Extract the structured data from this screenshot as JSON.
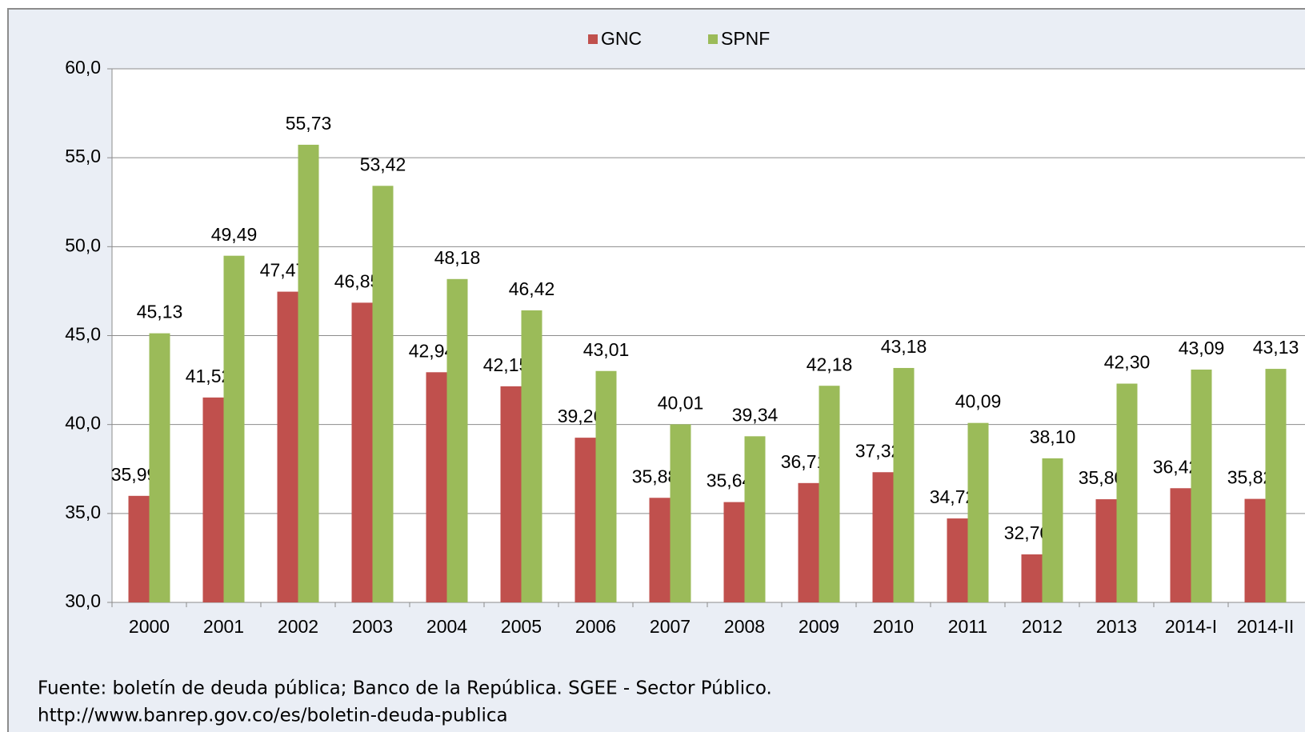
{
  "chart_data": {
    "type": "bar",
    "categories": [
      "2000",
      "2001",
      "2002",
      "2003",
      "2004",
      "2005",
      "2006",
      "2007",
      "2008",
      "2009",
      "2010",
      "2011",
      "2012",
      "2013",
      "2014-I",
      "2014-II"
    ],
    "series": [
      {
        "name": "GNC",
        "color": "#c0504d",
        "values": [
          35.99,
          41.52,
          47.47,
          46.85,
          42.94,
          42.15,
          39.26,
          35.88,
          35.64,
          36.71,
          37.32,
          34.72,
          32.7,
          35.8,
          36.42,
          35.82
        ],
        "value_labels": [
          "35,99",
          "41,52",
          "47,47",
          "46,85",
          "42,94",
          "42,15",
          "39,26",
          "35,88",
          "35,64",
          "36,71",
          "37,32",
          "34,72",
          "32,70",
          "35,80",
          "36,42",
          "35,82"
        ]
      },
      {
        "name": "SPNF",
        "color": "#9bbb59",
        "values": [
          45.13,
          49.49,
          55.73,
          53.42,
          48.18,
          46.42,
          43.01,
          40.01,
          39.34,
          42.18,
          43.18,
          40.09,
          38.1,
          42.3,
          43.09,
          43.13
        ],
        "value_labels": [
          "45,13",
          "49,49",
          "55,73",
          "53,42",
          "48,18",
          "46,42",
          "43,01",
          "40,01",
          "39,34",
          "42,18",
          "43,18",
          "40,09",
          "38,10",
          "42,30",
          "43,09",
          "43,13"
        ]
      }
    ],
    "ylim": [
      30,
      60
    ],
    "yticks": [
      {
        "value": 30,
        "label": "30,0"
      },
      {
        "value": 35,
        "label": "35,0"
      },
      {
        "value": 40,
        "label": "40,0"
      },
      {
        "value": 45,
        "label": "45,0"
      },
      {
        "value": 50,
        "label": "50,0"
      },
      {
        "value": 55,
        "label": "55,0"
      },
      {
        "value": 60,
        "label": "60,0"
      }
    ],
    "grid": true,
    "legend": "top",
    "footer": [
      "Fuente: boletín de deuda pública; Banco de la República. SGEE - Sector Público.",
      "http://www.banrep.gov.co/es/boletin-deuda-publica"
    ]
  }
}
